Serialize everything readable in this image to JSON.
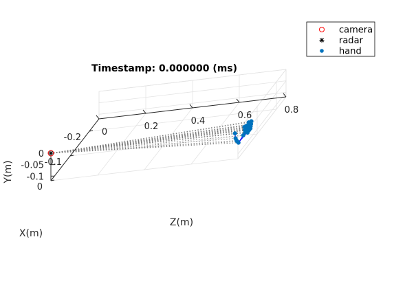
{
  "chart_data": {
    "type": "scatter",
    "projection": "3d",
    "title": "Timestamp: 0.000000 (ms)",
    "xlabel": "X(m)",
    "ylabel": "Y(m)",
    "zlabel": "Z(m)",
    "x_ticks": [
      "-0.2",
      "-0.1",
      "0"
    ],
    "y_ticks": [
      "-0.1",
      "-0.05",
      "0"
    ],
    "z_ticks": [
      "0",
      "0.2",
      "0.4",
      "0.6",
      "0.8"
    ],
    "xlim": [
      -0.25,
      0
    ],
    "ylim": [
      -0.12,
      0
    ],
    "zlim": [
      0,
      0.8
    ],
    "grid": true,
    "legend": {
      "placement": "top-right",
      "entries": [
        {
          "name": "camera",
          "marker": "circle-open",
          "color": "#ff0000"
        },
        {
          "name": "radar",
          "marker": "asterisk",
          "color": "#000000"
        },
        {
          "name": "hand",
          "marker": "dot",
          "color": "#0072bd"
        }
      ]
    },
    "camera": {
      "x": 0,
      "y": 0,
      "z": 0
    },
    "radar": {
      "x": 0,
      "y": 0,
      "z": 0
    },
    "hand": {
      "color": "#0072bd",
      "line_color": "#0000ff",
      "points": [
        {
          "x": -0.015,
          "y": -0.065,
          "z": 0.79
        },
        {
          "x": -0.01,
          "y": -0.055,
          "z": 0.79
        },
        {
          "x": -0.005,
          "y": -0.045,
          "z": 0.79
        },
        {
          "x": 0.0,
          "y": -0.03,
          "z": 0.79
        },
        {
          "x": 0.003,
          "y": -0.005,
          "z": 0.79
        },
        {
          "x": -0.04,
          "y": -0.06,
          "z": 0.79
        },
        {
          "x": -0.038,
          "y": -0.045,
          "z": 0.8
        },
        {
          "x": -0.036,
          "y": -0.033,
          "z": 0.8
        },
        {
          "x": -0.034,
          "y": -0.018,
          "z": 0.8
        },
        {
          "x": -0.05,
          "y": -0.06,
          "z": 0.8
        },
        {
          "x": -0.05,
          "y": -0.048,
          "z": 0.8
        },
        {
          "x": -0.048,
          "y": -0.038,
          "z": 0.8
        },
        {
          "x": -0.046,
          "y": -0.025,
          "z": 0.8
        },
        {
          "x": -0.058,
          "y": -0.058,
          "z": 0.8
        },
        {
          "x": -0.058,
          "y": -0.045,
          "z": 0.8
        },
        {
          "x": -0.058,
          "y": -0.035,
          "z": 0.8
        },
        {
          "x": -0.056,
          "y": -0.022,
          "z": 0.8
        },
        {
          "x": -0.065,
          "y": -0.058,
          "z": 0.8
        },
        {
          "x": -0.066,
          "y": -0.05,
          "z": 0.8
        },
        {
          "x": -0.068,
          "y": -0.042,
          "z": 0.8
        },
        {
          "x": -0.07,
          "y": -0.032,
          "z": 0.8
        }
      ],
      "connections": [
        [
          0,
          1
        ],
        [
          1,
          2
        ],
        [
          2,
          3
        ],
        [
          3,
          4
        ],
        [
          0,
          5
        ],
        [
          5,
          6
        ],
        [
          6,
          7
        ],
        [
          7,
          8
        ],
        [
          5,
          9
        ],
        [
          9,
          10
        ],
        [
          10,
          11
        ],
        [
          11,
          12
        ],
        [
          9,
          13
        ],
        [
          13,
          14
        ],
        [
          14,
          15
        ],
        [
          15,
          16
        ],
        [
          13,
          17
        ],
        [
          17,
          18
        ],
        [
          18,
          19
        ],
        [
          19,
          20
        ],
        [
          0,
          17
        ]
      ]
    }
  }
}
